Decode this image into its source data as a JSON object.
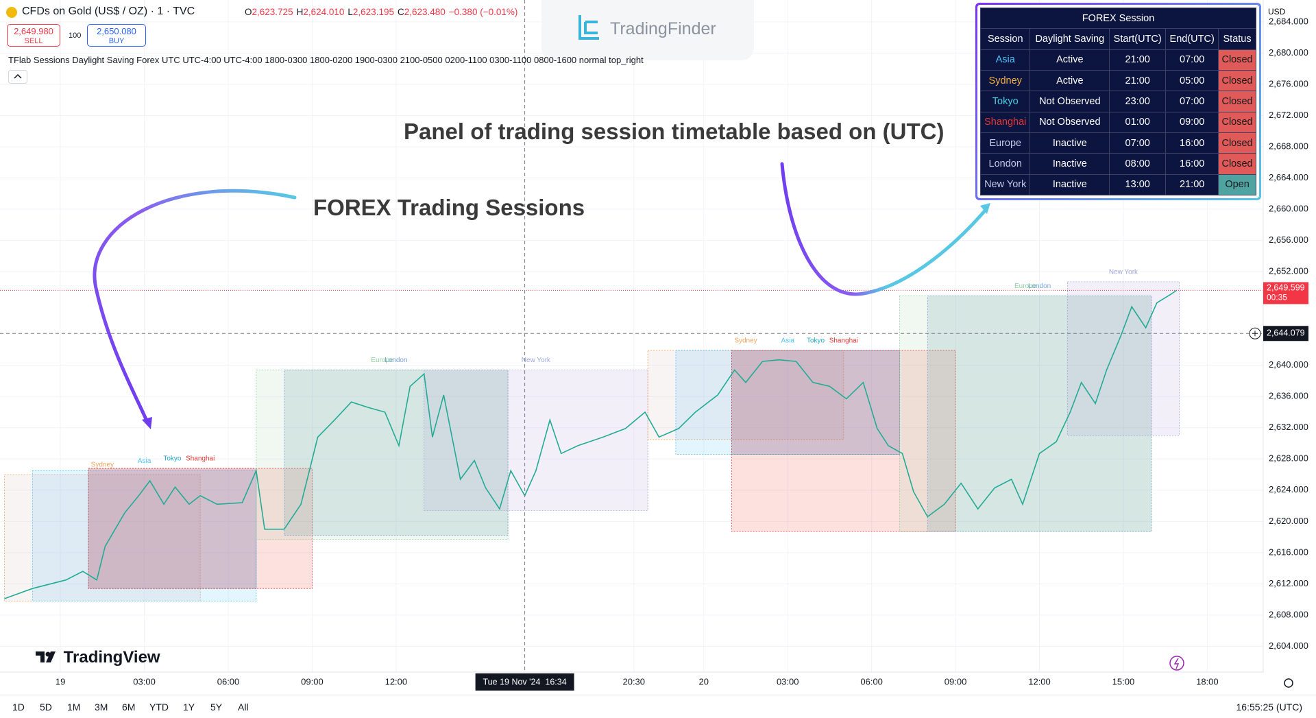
{
  "header": {
    "symbol": "CFDs on Gold (US$ / OZ) · 1 · TVC",
    "ohlc": [
      {
        "key": "O",
        "value": "2,623.725"
      },
      {
        "key": "H",
        "value": "2,624.010"
      },
      {
        "key": "L",
        "value": "2,623.195"
      },
      {
        "key": "C",
        "value": "2,623.480"
      }
    ],
    "change": "−0.380 (−0.01%)",
    "sell_price": "2,649.980",
    "sell": "SELL",
    "spread": "100",
    "buy_price": "2,650.080",
    "buy": "BUY",
    "indicator": "TFlab Sessions Daylight Saving Forex UTC UTC-4:00 UTC-4:00 1800-0300 1800-0200 1900-0300 2100-0500 0200-1100 0300-1100 0800-1600 normal top_right",
    "currency": "USD"
  },
  "logos": {
    "top": "TradingFinder",
    "bottom": "TradingView"
  },
  "annotations": {
    "panel": "Panel of trading session timetable based on (UTC)",
    "sessions": "FOREX Trading Sessions"
  },
  "panel": {
    "title": "FOREX Session",
    "headers": [
      "Session",
      "Daylight Saving",
      "Start(UTC)",
      "End(UTC)",
      "Status"
    ],
    "rows": [
      {
        "session": "Asia",
        "color": "#4fc3f7",
        "daylight": "Active",
        "start": "21:00",
        "end": "07:00",
        "status": "Closed",
        "status_color": "#e05a5a"
      },
      {
        "session": "Sydney",
        "color": "#f5b041",
        "daylight": "Active",
        "start": "21:00",
        "end": "05:00",
        "status": "Closed",
        "status_color": "#e05a5a"
      },
      {
        "session": "Tokyo",
        "color": "#4dd0e1",
        "daylight": "Not Observed",
        "start": "23:00",
        "end": "07:00",
        "status": "Closed",
        "status_color": "#e05a5a"
      },
      {
        "session": "Shanghai",
        "color": "#e53935",
        "daylight": "Not Observed",
        "start": "01:00",
        "end": "09:00",
        "status": "Closed",
        "status_color": "#e05a5a"
      },
      {
        "session": "Europe",
        "color": "#c5cae9",
        "daylight": "Inactive",
        "start": "07:00",
        "end": "16:00",
        "status": "Closed",
        "status_color": "#e05a5a"
      },
      {
        "session": "London",
        "color": "#c5cae9",
        "daylight": "Inactive",
        "start": "08:00",
        "end": "16:00",
        "status": "Closed",
        "status_color": "#e05a5a"
      },
      {
        "session": "New York",
        "color": "#c5cae9",
        "daylight": "Inactive",
        "start": "13:00",
        "end": "21:00",
        "status": "Open",
        "status_color": "#4fa3a0"
      }
    ]
  },
  "chart_data": {
    "type": "line",
    "xlim": [
      -2.16,
      43.0
    ],
    "ylim": [
      2600.7,
      2686.8
    ],
    "grid": true,
    "xticks": [
      {
        "value": 0,
        "label": "19"
      },
      {
        "value": 3,
        "label": "03:00"
      },
      {
        "value": 6,
        "label": "06:00"
      },
      {
        "value": 9,
        "label": "09:00"
      },
      {
        "value": 12,
        "label": "12:00"
      },
      {
        "value": 20.5,
        "label": "20:30"
      },
      {
        "value": 23,
        "label": "20"
      },
      {
        "value": 26,
        "label": "03:00"
      },
      {
        "value": 29,
        "label": "06:00"
      },
      {
        "value": 32,
        "label": "09:00"
      },
      {
        "value": 35,
        "label": "12:00"
      },
      {
        "value": 38,
        "label": "15:00"
      },
      {
        "value": 41,
        "label": "18:00"
      }
    ],
    "yticks": [
      {
        "value": 2604,
        "label": "2,604.000"
      },
      {
        "value": 2608,
        "label": "2,608.000"
      },
      {
        "value": 2612,
        "label": "2,612.000"
      },
      {
        "value": 2616,
        "label": "2,616.000"
      },
      {
        "value": 2620,
        "label": "2,620.000"
      },
      {
        "value": 2624,
        "label": "2,624.000"
      },
      {
        "value": 2628,
        "label": "2,628.000"
      },
      {
        "value": 2632,
        "label": "2,632.000"
      },
      {
        "value": 2636,
        "label": "2,636.000"
      },
      {
        "value": 2640,
        "label": "2,640.000"
      },
      {
        "value": 2652,
        "label": "2,652.000"
      },
      {
        "value": 2656,
        "label": "2,656.000"
      },
      {
        "value": 2660,
        "label": "2,660.000"
      },
      {
        "value": 2664,
        "label": "2,664.000"
      },
      {
        "value": 2668,
        "label": "2,668.000"
      },
      {
        "value": 2672,
        "label": "2,672.000"
      },
      {
        "value": 2676,
        "label": "2,676.000"
      },
      {
        "value": 2680,
        "label": "2,680.000"
      },
      {
        "value": 2684,
        "label": "2,684.000"
      }
    ],
    "price": {
      "color": "#22ab94",
      "x": [
        -2.0,
        -1.0,
        0.2,
        0.8,
        1.3,
        1.6,
        2.3,
        2.8,
        3.2,
        3.7,
        4.1,
        4.6,
        5.0,
        5.6,
        6.5,
        7.0,
        7.3,
        8.0,
        8.6,
        9.2,
        9.8,
        10.4,
        11.0,
        11.6,
        12.1,
        12.5,
        13.0,
        13.3,
        13.7,
        14.3,
        14.8,
        15.2,
        15.7,
        16.1,
        16.6,
        17.0,
        17.5,
        17.9,
        18.5,
        19.4,
        20.2,
        20.9,
        21.4,
        22.1,
        22.7,
        23.5,
        24.1,
        24.5,
        25.1,
        25.7,
        26.3,
        26.9,
        27.5,
        28.1,
        28.7,
        29.2,
        29.6,
        30.1,
        30.5,
        31.0,
        31.6,
        32.2,
        32.8,
        33.4,
        34.0,
        34.4,
        35.0,
        35.6,
        36.1,
        36.5,
        37.0,
        37.4,
        37.9,
        38.3,
        38.8,
        39.2,
        39.7,
        39.9
      ],
      "values": [
        2610.1,
        2611.4,
        2612.5,
        2613.6,
        2612.5,
        2616.8,
        2621.1,
        2623.3,
        2625.2,
        2622.2,
        2624.4,
        2622.2,
        2623.3,
        2622.2,
        2622.4,
        2626.5,
        2619.0,
        2619.0,
        2622.2,
        2630.8,
        2633.0,
        2635.3,
        2634.6,
        2634.0,
        2629.7,
        2637.3,
        2638.9,
        2630.8,
        2636.2,
        2625.4,
        2627.8,
        2624.3,
        2621.6,
        2626.5,
        2623.3,
        2626.5,
        2633.0,
        2628.7,
        2629.7,
        2630.8,
        2631.9,
        2634.0,
        2630.8,
        2631.9,
        2634.0,
        2636.2,
        2639.4,
        2637.8,
        2640.5,
        2640.7,
        2640.5,
        2637.8,
        2637.3,
        2635.7,
        2637.8,
        2631.9,
        2629.7,
        2628.7,
        2623.8,
        2620.6,
        2622.2,
        2624.9,
        2621.6,
        2624.3,
        2625.4,
        2622.2,
        2628.7,
        2630.2,
        2634.0,
        2637.8,
        2635.1,
        2639.4,
        2643.7,
        2647.5,
        2644.8,
        2648.0,
        2649.1,
        2649.6
      ]
    },
    "sessions": [
      {
        "name": "Sydney",
        "color": "#f0a35e",
        "fill": "#d9b8b8",
        "start": -2.0,
        "end": 5.0,
        "high": 2626.0,
        "low": 2609.8
      },
      {
        "name": "Asia",
        "color": "#4fc3f7",
        "fill": "#4fc3f7",
        "start": -1.0,
        "end": 7.0,
        "high": 2626.5,
        "low": 2609.8
      },
      {
        "name": "Tokyo",
        "color": "#26a6c8",
        "fill": "#5a3d8a",
        "start": 1.0,
        "end": 7.0,
        "high": 2626.8,
        "low": 2611.4
      },
      {
        "name": "Shanghai",
        "color": "#e53935",
        "fill": "#f44336",
        "start": 1.0,
        "end": 9.0,
        "high": 2626.8,
        "low": 2611.4
      },
      {
        "name": "Europe",
        "color": "#8fd19e",
        "fill": "#a5d6a7",
        "start": 7.0,
        "end": 16.0,
        "high": 2639.4,
        "low": 2617.7
      },
      {
        "name": "London",
        "color": "#7ba3d6",
        "fill": "#4a8a9a",
        "start": 8.0,
        "end": 16.0,
        "high": 2639.4,
        "low": 2618.2
      },
      {
        "name": "New York",
        "color": "#9fa8da",
        "fill": "#b39ddb",
        "start": 13.0,
        "end": 21.0,
        "high": 2639.4,
        "low": 2621.4
      },
      {
        "name": "Sydney",
        "color": "#f0a35e",
        "fill": "#d9b8b8",
        "start": 21.0,
        "end": 28.0,
        "high": 2641.9,
        "low": 2630.5
      },
      {
        "name": "Asia",
        "color": "#4fc3f7",
        "fill": "#4fc3f7",
        "start": 22.0,
        "end": 30.0,
        "high": 2641.9,
        "low": 2628.6
      },
      {
        "name": "Tokyo",
        "color": "#26a6c8",
        "fill": "#5a3d8a",
        "start": 24.0,
        "end": 30.0,
        "high": 2641.9,
        "low": 2628.6
      },
      {
        "name": "Shanghai",
        "color": "#e53935",
        "fill": "#f44336",
        "start": 24.0,
        "end": 32.0,
        "high": 2641.9,
        "low": 2618.7
      },
      {
        "name": "Europe",
        "color": "#8fd19e",
        "fill": "#a5d6a7",
        "start": 30.0,
        "end": 39.0,
        "high": 2648.9,
        "low": 2618.7
      },
      {
        "name": "London",
        "color": "#7ba3d6",
        "fill": "#4a8a9a",
        "start": 31.0,
        "end": 39.0,
        "high": 2648.9,
        "low": 2618.7
      },
      {
        "name": "New York",
        "color": "#9fa8da",
        "fill": "#b39ddb",
        "start": 36.0,
        "end": 40.0,
        "high": 2650.7,
        "low": 2631.0
      }
    ],
    "last_price": {
      "value": 2649.599,
      "label": "2,649.599",
      "countdown": "00:35",
      "color": "#f23645"
    },
    "crosshair": {
      "price": 2644.079,
      "price_label": "2,644.079",
      "x": 16.6,
      "time_label": "Tue 19 Nov '24  16:34"
    }
  },
  "toolbar": {
    "ranges": [
      "1D",
      "5D",
      "1M",
      "3M",
      "6M",
      "YTD",
      "1Y",
      "5Y",
      "All"
    ],
    "clock": "16:55:25 (UTC)"
  }
}
